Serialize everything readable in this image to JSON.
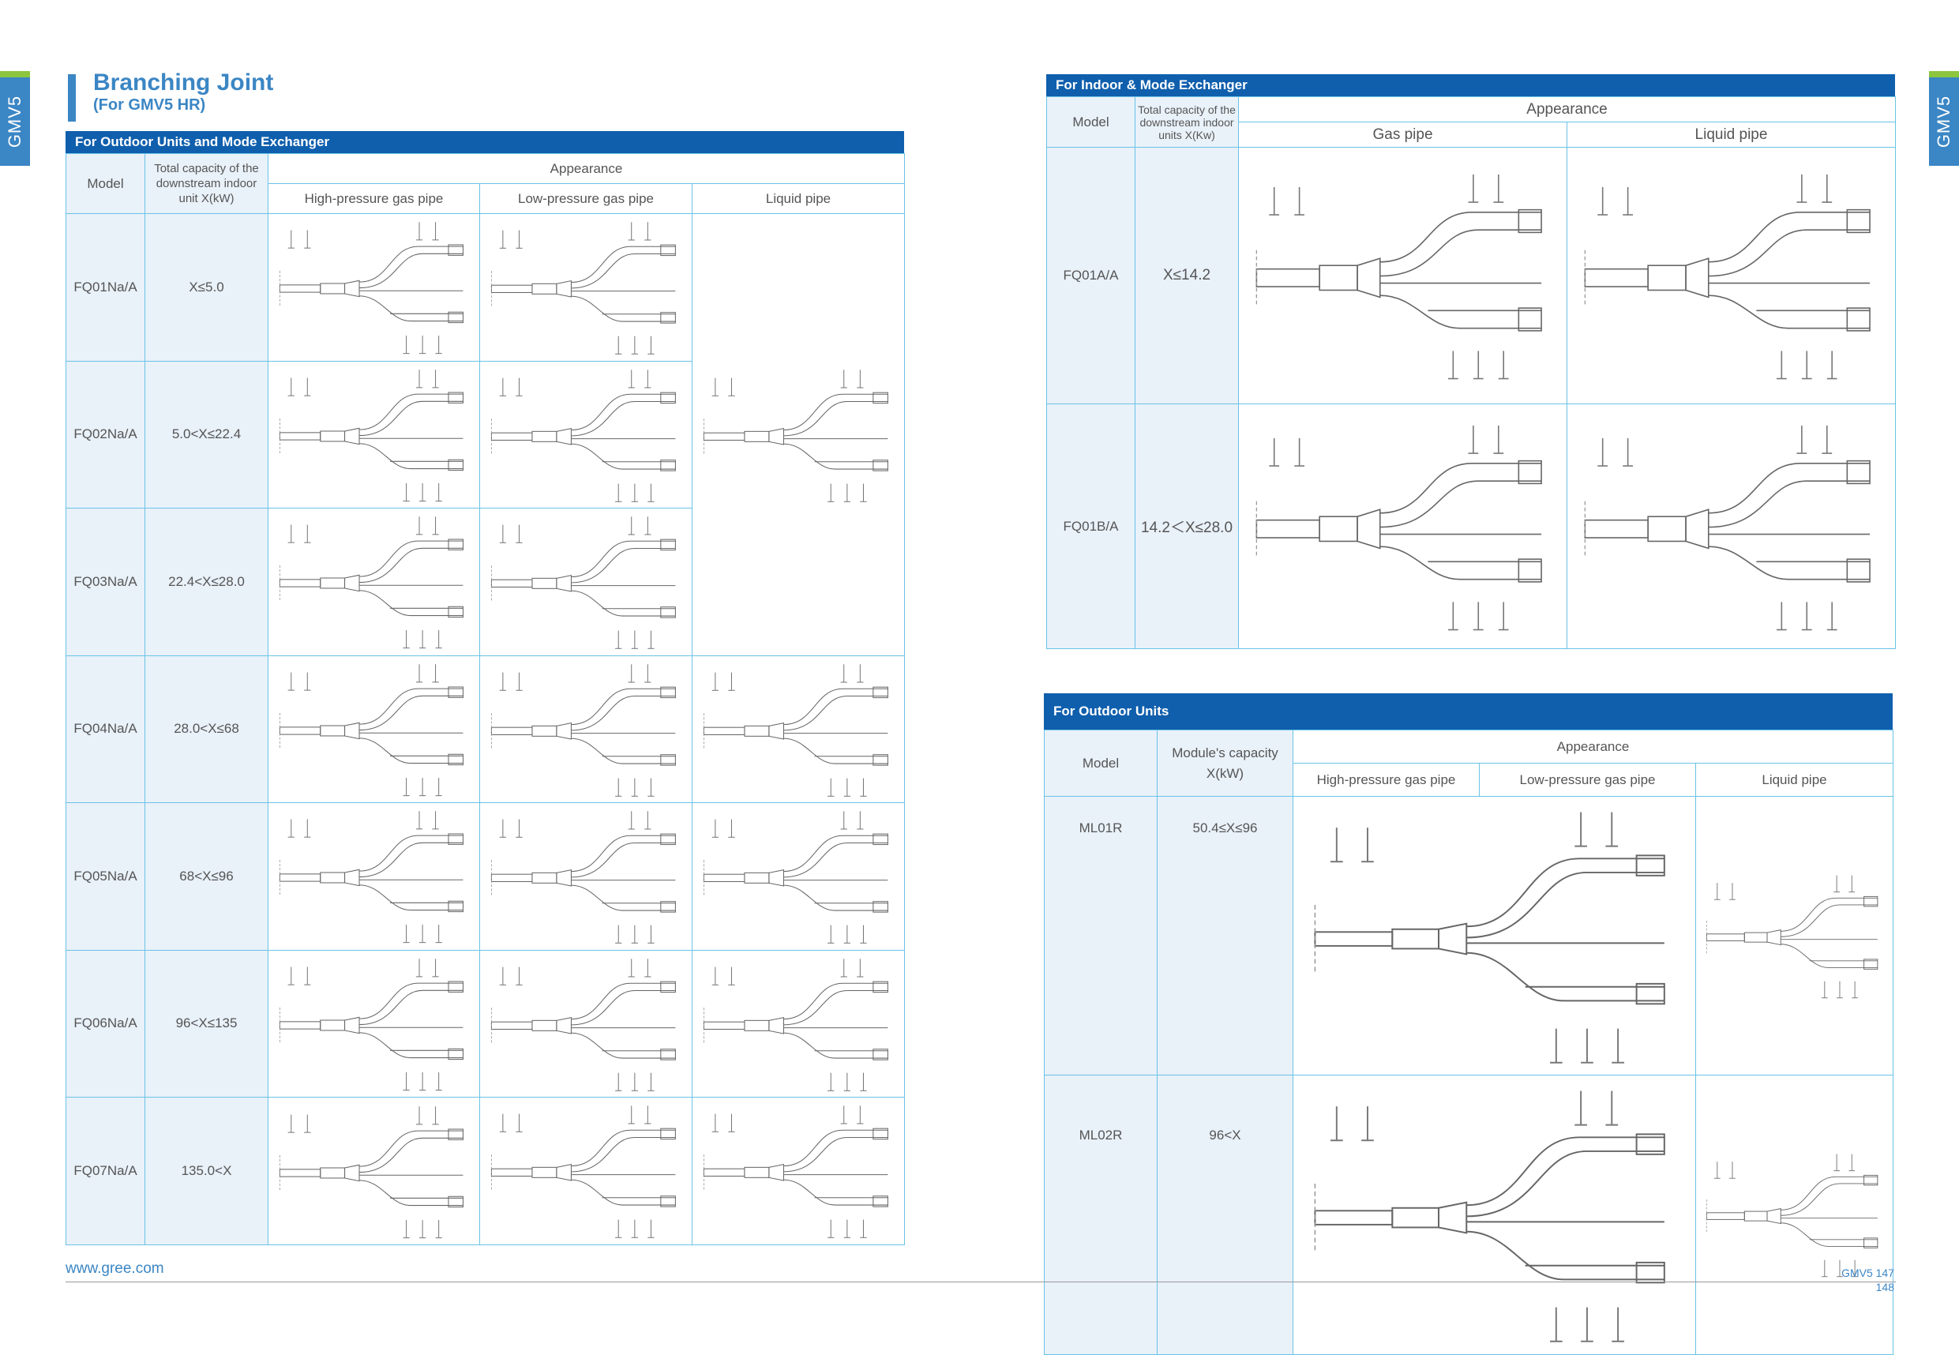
{
  "side_tab": "GMV5",
  "title": "Branching Joint",
  "subtitle": "(For GMV5 HR)",
  "outdoor_mode": {
    "heading": "For Outdoor Units and Mode Exchanger",
    "col_model": "Model",
    "col_capacity": "Total capacity of the downstream indoor unit X(kW)",
    "col_appearance": "Appearance",
    "col_high": "High-pressure gas pipe",
    "col_low": "Low-pressure gas pipe",
    "col_liquid": "Liquid pipe",
    "rows": [
      {
        "model": "FQ01Na/A",
        "capacity": "X≤5.0"
      },
      {
        "model": "FQ02Na/A",
        "capacity": "5.0<X≤22.4"
      },
      {
        "model": "FQ03Na/A",
        "capacity": "22.4<X≤28.0"
      },
      {
        "model": "FQ04Na/A",
        "capacity": "28.0<X≤68"
      },
      {
        "model": "FQ05Na/A",
        "capacity": "68<X≤96"
      },
      {
        "model": "FQ06Na/A",
        "capacity": "96<X≤135"
      },
      {
        "model": "FQ07Na/A",
        "capacity": "135.0<X"
      }
    ]
  },
  "indoor_mode": {
    "heading": "For Indoor & Mode Exchanger",
    "col_model": "Model",
    "col_capacity": "Total capacity of the downstream indoor units X(Kw)",
    "col_appearance": "Appearance",
    "col_gas": "Gas pipe",
    "col_liquid": "Liquid pipe",
    "rows": [
      {
        "model": "FQ01A/A",
        "capacity": "X≤14.2"
      },
      {
        "model": "FQ01B/A",
        "capacity": "14.2＜X≤28.0"
      }
    ]
  },
  "outdoor_units": {
    "heading": "For Outdoor Units",
    "col_model": "Model",
    "col_capacity": "Module's capacity X(kW)",
    "col_appearance": "Appearance",
    "col_high": "High-pressure gas pipe",
    "col_low": "Low-pressure gas pipe",
    "col_liquid": "Liquid pipe",
    "rows": [
      {
        "model": "ML01R",
        "capacity": "50.4≤X≤96"
      },
      {
        "model": "ML02R",
        "capacity": "96<X"
      }
    ]
  },
  "footer": {
    "url": "www.gree.com",
    "page_a": "GMV5 147",
    "page_b": "148"
  }
}
